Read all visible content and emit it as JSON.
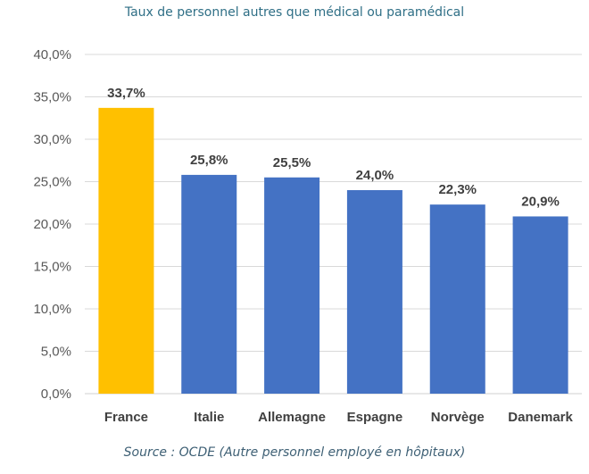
{
  "chart_data": {
    "type": "bar",
    "title": "Taux de personnel autres que médical ou paramédical",
    "source": "Source : OCDE (Autre personnel employé en hôpitaux)",
    "categories": [
      "France",
      "Italie",
      "Allemagne",
      "Espagne",
      "Norvège",
      "Danemark"
    ],
    "values": [
      33.7,
      25.8,
      25.5,
      24.0,
      22.3,
      20.9
    ],
    "data_labels": [
      "33,7%",
      "25,8%",
      "25,5%",
      "24,0%",
      "22,3%",
      "20,9%"
    ],
    "y_ticks": [
      "0,0%",
      "5,0%",
      "10,0%",
      "15,0%",
      "20,0%",
      "25,0%",
      "30,0%",
      "35,0%",
      "40,0%"
    ],
    "ylim": [
      0,
      40
    ],
    "grid": true,
    "legend": "none",
    "colors": {
      "highlight": "#FFC000",
      "default": "#4472C4",
      "gridline": "#d9d9d9"
    },
    "highlight_category": "France"
  }
}
